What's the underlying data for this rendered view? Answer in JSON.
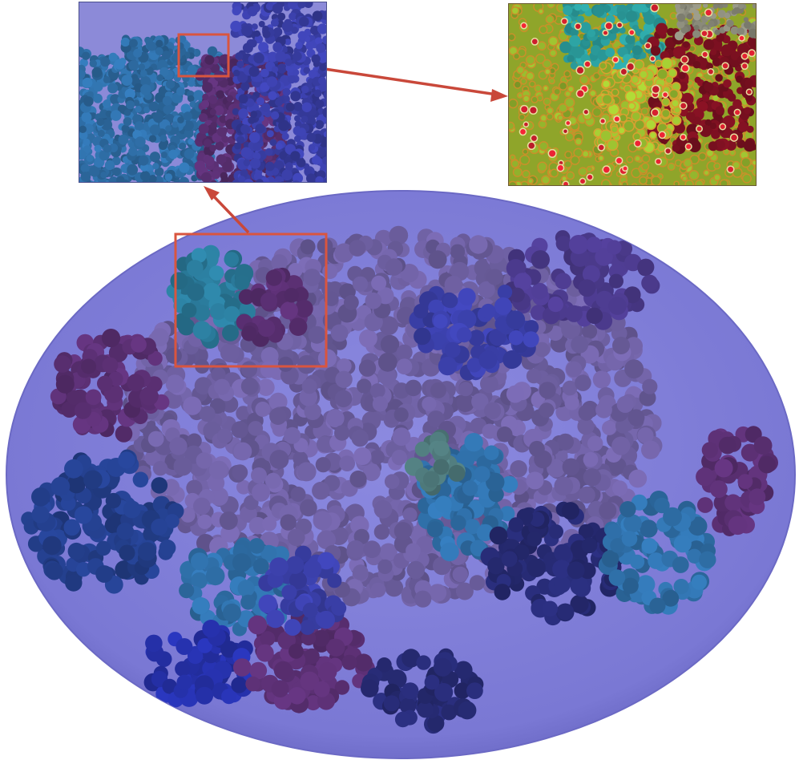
{
  "figure": {
    "colors": {
      "sphere_fill": "#7b79d6",
      "sphere_edge": "#6e6cc8",
      "highlight_box": "#d9553f",
      "arrow": "#c9483a",
      "panel1_sky": "#8c8ad8",
      "panel2_background": "#8fa52a"
    },
    "regions": [
      {
        "name": "teal-cluster-top-left",
        "color": "#2a7a9a"
      },
      {
        "name": "plum-cluster-left",
        "color": "#5a2f72"
      },
      {
        "name": "violet-core",
        "color": "#6d5fa0"
      },
      {
        "name": "indigo-wedge-center",
        "color": "#3a3fa8"
      },
      {
        "name": "navy-cluster-lower-left",
        "color": "#233e8a"
      },
      {
        "name": "blue-cluster-bottom",
        "color": "#2530a8"
      },
      {
        "name": "teal-blue-cluster-center",
        "color": "#2f6fa8"
      },
      {
        "name": "green-gray-patch",
        "color": "#4f7a7c"
      },
      {
        "name": "dark-navy-cluster-right",
        "color": "#262a72"
      },
      {
        "name": "plum-cluster-right",
        "color": "#5a2f72"
      },
      {
        "name": "purple-cluster-top-right",
        "color": "#4b3a8c"
      }
    ],
    "icons": [
      "magnify-box-icon",
      "arrow-icon"
    ]
  }
}
